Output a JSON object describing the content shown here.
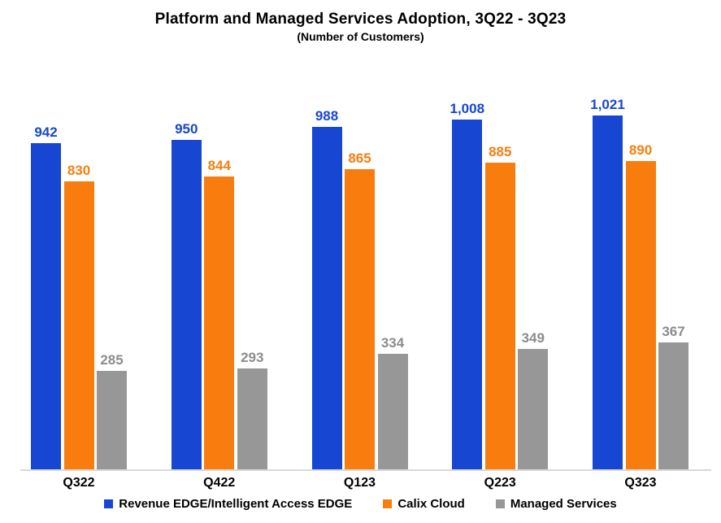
{
  "chart_data": {
    "type": "bar",
    "title": "Platform and Managed Services Adoption, 3Q22 - 3Q23",
    "subtitle": "(Number of Customers)",
    "categories": [
      "Q322",
      "Q422",
      "Q123",
      "Q223",
      "Q323"
    ],
    "series": [
      {
        "name": "Revenue EDGE/Intelligent Access EDGE",
        "color": "#1646d2",
        "label_color": "#1646d2",
        "values": [
          942,
          950,
          988,
          1008,
          1021
        ],
        "labels": [
          "942",
          "950",
          "988",
          "1,008",
          "1,021"
        ]
      },
      {
        "name": "Calix Cloud",
        "color": "#f97d0e",
        "label_color": "#f97d0e",
        "values": [
          830,
          844,
          865,
          885,
          890
        ],
        "labels": [
          "830",
          "844",
          "865",
          "885",
          "890"
        ]
      },
      {
        "name": "Managed Services",
        "color": "#979797",
        "label_color": "#8c8c8c",
        "values": [
          285,
          293,
          334,
          349,
          367
        ],
        "labels": [
          "285",
          "293",
          "334",
          "349",
          "367"
        ]
      }
    ],
    "xlabel": "",
    "ylabel": "",
    "ylim": [
      0,
      1100
    ],
    "grid": false,
    "legend_position": "bottom",
    "axis_line_color": "#d9d9d9"
  }
}
